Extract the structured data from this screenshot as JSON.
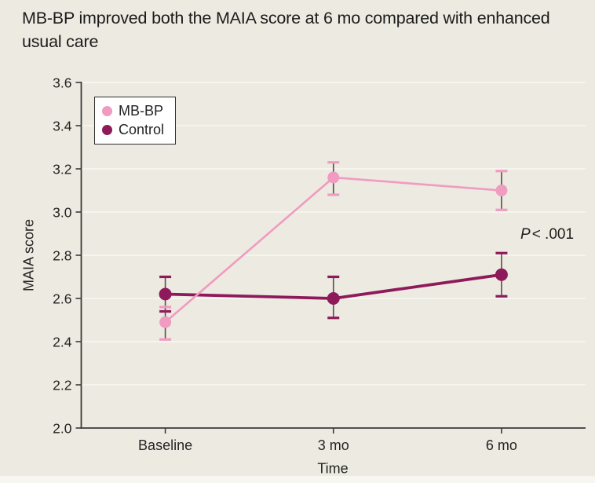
{
  "chart_data": {
    "type": "line",
    "title": "MB-BP improved both the MAIA score at 6 mo compared with enhanced usual care",
    "x": [
      "Baseline",
      "3 mo",
      "6 mo"
    ],
    "xlabel": "Time",
    "ylabel": "MAIA score",
    "ylim": [
      2.0,
      3.6
    ],
    "yticks": [
      2.0,
      2.2,
      2.4,
      2.6,
      2.8,
      3.0,
      3.2,
      3.4,
      3.6
    ],
    "grid": true,
    "legend_position": "top-left",
    "series": [
      {
        "name": "MB-BP",
        "color": "#F09BC0",
        "values": [
          2.49,
          3.16,
          3.1
        ],
        "err_low": [
          2.41,
          3.08,
          3.01
        ],
        "err_high": [
          2.56,
          3.23,
          3.19
        ],
        "line_width": 2.6,
        "marker_radius": 7.5
      },
      {
        "name": "Control",
        "color": "#8E1A5B",
        "values": [
          2.62,
          2.6,
          2.71
        ],
        "err_low": [
          2.54,
          2.51,
          2.61
        ],
        "err_high": [
          2.7,
          2.7,
          2.81
        ],
        "line_width": 3.8,
        "marker_radius": 8
      }
    ],
    "annotation": {
      "symbol": "P",
      "value": "< .001"
    },
    "colors": {
      "background": "#EDEAE1",
      "gridline": "#F8F7F2",
      "axis": "#3A3A3A",
      "tick_text": "#242424",
      "error_stem": "#55504A"
    }
  }
}
